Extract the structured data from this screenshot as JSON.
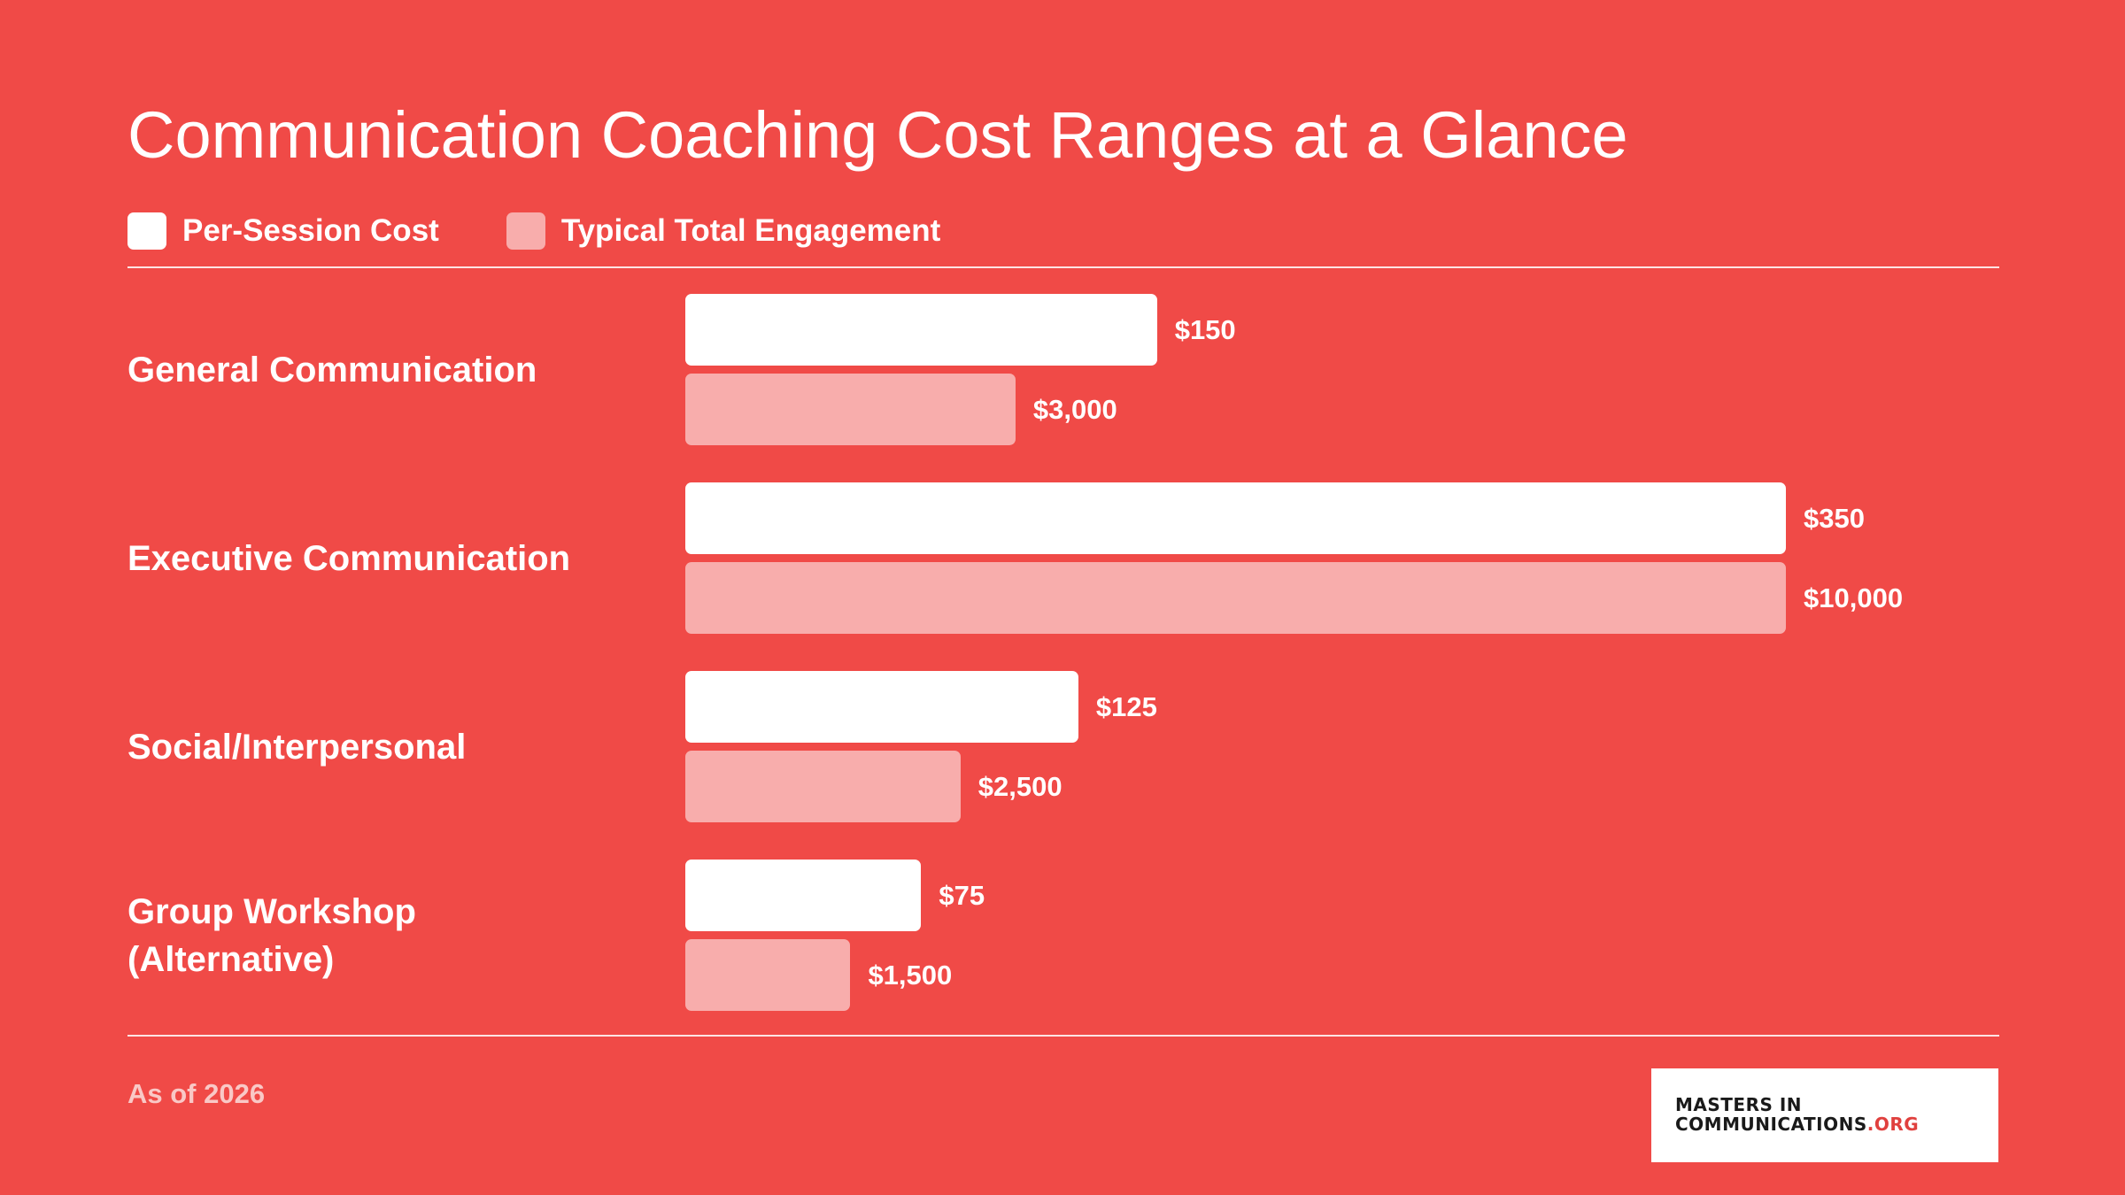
{
  "header": {
    "title": "Communication Coaching Cost Ranges at a Glance"
  },
  "colors": {
    "background": "#F04A47",
    "per_session": "#FFFFFF",
    "total_engagement": "#F8ADAC"
  },
  "footer": {
    "note": "As of 2026",
    "logo_line1": "MASTERS IN",
    "logo_line2": "COMMUNICATIONS",
    "logo_suffix": ".ORG"
  },
  "chart_data": {
    "type": "bar",
    "orientation": "horizontal",
    "title": "Communication Coaching Cost Ranges at a Glance",
    "legend_position": "top-left",
    "grid": false,
    "categories": [
      "General Communication",
      "Executive Communication",
      "Social/Interpersonal",
      "Group Workshop\n(Alternative)"
    ],
    "series": [
      {
        "name": "Per-Session Cost",
        "values": [
          150,
          350,
          125,
          75
        ],
        "labels": [
          "$150",
          "$350",
          "$125",
          "$75"
        ]
      },
      {
        "name": "Typical Total Engagement",
        "values": [
          3000,
          10000,
          2500,
          1500
        ],
        "labels": [
          "$3,000",
          "$10,000",
          "$2,500",
          "$1,500"
        ]
      }
    ]
  }
}
